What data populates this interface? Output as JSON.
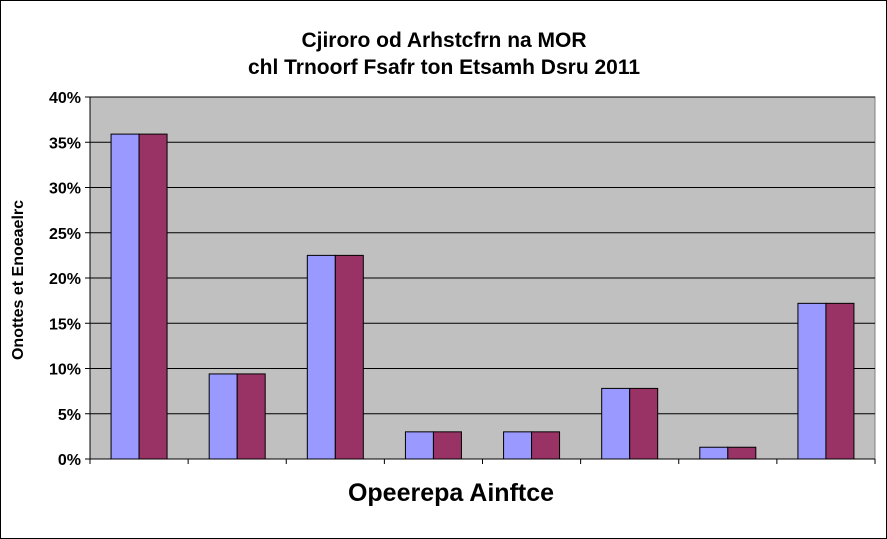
{
  "chart_data": {
    "type": "bar",
    "title_lines": [
      "Cjiroro od Arhstcfrn na MOR",
      "chl Trnoorf Fsafr ton Etsamh Dsru 2011"
    ],
    "xlabel": "Opeerepa Ainftce",
    "ylabel": "Onottes et Enoeaelrc",
    "categories": [
      "",
      "",
      "",
      "",
      "",
      "",
      "",
      ""
    ],
    "series": [
      {
        "values": [
          35.9,
          9.4,
          22.5,
          3.0,
          3.0,
          7.8,
          1.3,
          17.2
        ]
      },
      {
        "values": [
          35.9,
          9.4,
          22.5,
          3.0,
          3.0,
          7.8,
          1.3,
          17.2
        ]
      }
    ],
    "ylim": [
      0,
      40
    ],
    "yticks": [
      {
        "value": 0,
        "label": "0%"
      },
      {
        "value": 5,
        "label": "5%"
      },
      {
        "value": 10,
        "label": "10%"
      },
      {
        "value": 15,
        "label": "15%"
      },
      {
        "value": 20,
        "label": "20%"
      },
      {
        "value": 25,
        "label": "25%"
      },
      {
        "value": 30,
        "label": "30%"
      },
      {
        "value": 35,
        "label": "35%"
      },
      {
        "value": 40,
        "label": "40%"
      }
    ],
    "grid": true,
    "legend": "none",
    "colors": {
      "series": [
        "#9999ff",
        "#993366"
      ],
      "plot_background": "#c0c0c0",
      "gridline": "#000000"
    }
  }
}
